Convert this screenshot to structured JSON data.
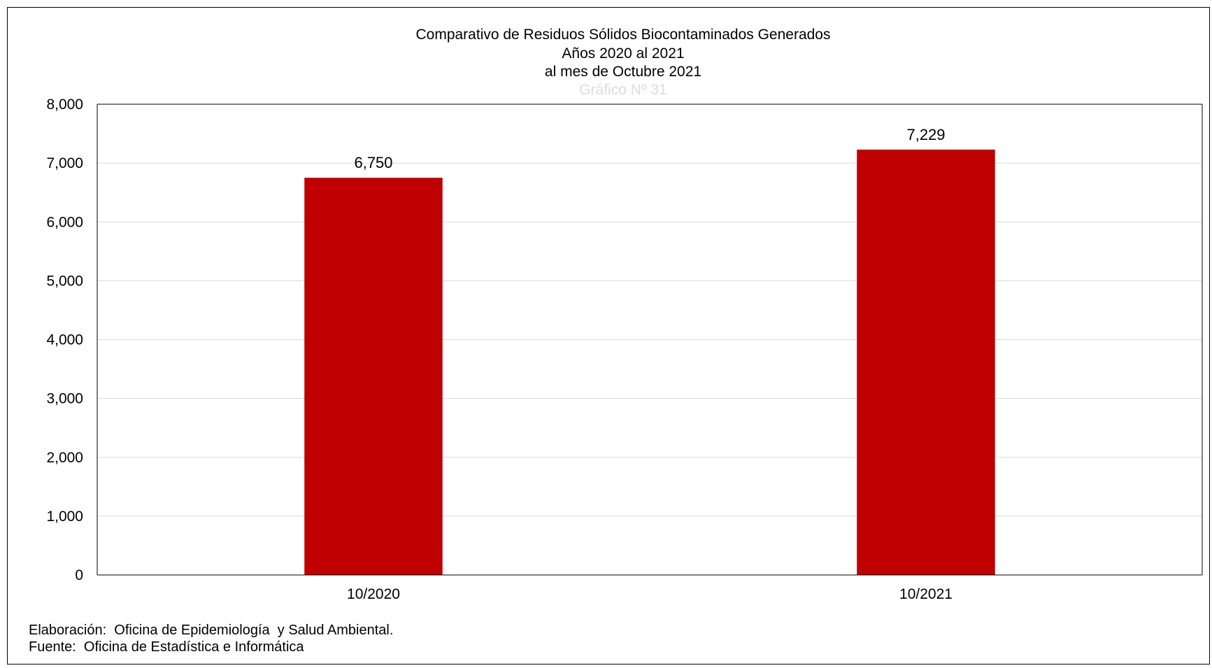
{
  "chart_data": {
    "type": "bar",
    "title": [
      "Comparativo  de Residuos Sólidos Biocontaminados Generados",
      "Años 2020 al 2021",
      "al mes de Octubre 2021"
    ],
    "subtitle": "Gráfico  Nº 31",
    "categories": [
      "10/2020",
      "10/2021"
    ],
    "series": [
      {
        "values": [
          6750,
          7229
        ],
        "labels": [
          "6,750",
          "7,229"
        ]
      }
    ],
    "ylim": [
      0,
      8000
    ],
    "yticks": [
      0,
      1000,
      2000,
      3000,
      4000,
      5000,
      6000,
      7000,
      8000
    ],
    "ytick_labels": [
      "0",
      "1,000",
      "2,000",
      "3,000",
      "4,000",
      "5,000",
      "6,000",
      "7,000",
      "8,000"
    ],
    "grid": true,
    "legend": "none",
    "bar_color": "#c00000",
    "grid_color": "#d9d9d9"
  },
  "footer": {
    "elaboracion": "Elaboración:  Oficina de Epidemiología  y Salud Ambiental.",
    "fuente": "Fuente:  Oficina de Estadística e Informática"
  }
}
